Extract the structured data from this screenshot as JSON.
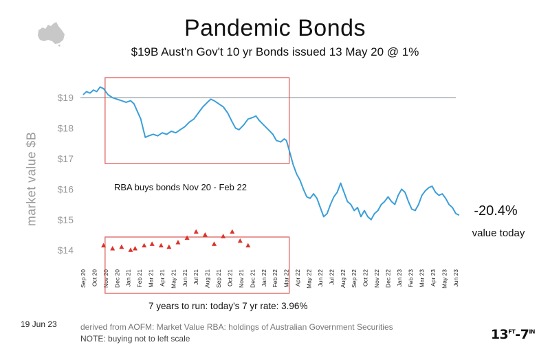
{
  "chart_data": {
    "type": "line",
    "title": "Pandemic Bonds",
    "subtitle": "$19B Aust'n Gov't 10 yr Bonds issued 13 May 20 @ 1%",
    "ylabel": "market value  $B",
    "yticks": [
      "$14",
      "$15",
      "$16",
      "$17",
      "$18",
      "$19"
    ],
    "ylim": [
      13.6,
      19.5
    ],
    "reference_value": 19,
    "x_ticks": [
      "Sep 20",
      "Oct 20",
      "Nov 20",
      "Dec 20",
      "Jan 21",
      "Feb 21",
      "Mar 21",
      "Apr 21",
      "May 21",
      "Jun 21",
      "Jul 21",
      "Aug 21",
      "Sep 21",
      "Oct 21",
      "Nov 21",
      "Dec 21",
      "Jan 22",
      "Feb 22",
      "Mar 22",
      "Apr 22",
      "May 22",
      "Jun 22",
      "Jul 22",
      "Aug 22",
      "Sep 22",
      "Oct 22",
      "Nov 22",
      "Dec 22",
      "Jan 23",
      "Feb 23",
      "Mar 23",
      "Apr 23",
      "May 23",
      "Jun 23"
    ],
    "series": [
      {
        "color": "#3a9fd8",
        "values": [
          [
            0,
            19.1
          ],
          [
            0.3,
            19.2
          ],
          [
            0.6,
            19.15
          ],
          [
            0.9,
            19.25
          ],
          [
            1.2,
            19.2
          ],
          [
            1.5,
            19.35
          ],
          [
            1.8,
            19.3
          ],
          [
            2.0,
            19.2
          ],
          [
            2.2,
            19.1
          ],
          [
            2.6,
            19.0
          ],
          [
            3.0,
            18.95
          ],
          [
            3.4,
            18.9
          ],
          [
            3.8,
            18.85
          ],
          [
            4.2,
            18.9
          ],
          [
            4.5,
            18.8
          ],
          [
            4.8,
            18.55
          ],
          [
            5.1,
            18.3
          ],
          [
            5.3,
            18.0
          ],
          [
            5.5,
            17.7
          ],
          [
            5.8,
            17.75
          ],
          [
            6.2,
            17.8
          ],
          [
            6.6,
            17.75
          ],
          [
            7.0,
            17.85
          ],
          [
            7.4,
            17.8
          ],
          [
            7.8,
            17.9
          ],
          [
            8.2,
            17.85
          ],
          [
            8.6,
            17.95
          ],
          [
            9.0,
            18.05
          ],
          [
            9.4,
            18.2
          ],
          [
            9.8,
            18.3
          ],
          [
            10.2,
            18.5
          ],
          [
            10.6,
            18.7
          ],
          [
            11.0,
            18.85
          ],
          [
            11.3,
            18.95
          ],
          [
            11.6,
            18.9
          ],
          [
            12.0,
            18.8
          ],
          [
            12.4,
            18.7
          ],
          [
            12.8,
            18.5
          ],
          [
            13.2,
            18.2
          ],
          [
            13.5,
            18.0
          ],
          [
            13.8,
            17.95
          ],
          [
            14.2,
            18.1
          ],
          [
            14.6,
            18.3
          ],
          [
            15.0,
            18.35
          ],
          [
            15.3,
            18.4
          ],
          [
            15.6,
            18.25
          ],
          [
            16.0,
            18.1
          ],
          [
            16.4,
            17.95
          ],
          [
            16.8,
            17.8
          ],
          [
            17.1,
            17.6
          ],
          [
            17.5,
            17.55
          ],
          [
            17.8,
            17.65
          ],
          [
            18.0,
            17.6
          ],
          [
            18.3,
            17.2
          ],
          [
            18.6,
            16.8
          ],
          [
            18.9,
            16.5
          ],
          [
            19.2,
            16.3
          ],
          [
            19.5,
            16.0
          ],
          [
            19.8,
            15.75
          ],
          [
            20.1,
            15.7
          ],
          [
            20.4,
            15.85
          ],
          [
            20.7,
            15.7
          ],
          [
            21.0,
            15.4
          ],
          [
            21.3,
            15.1
          ],
          [
            21.6,
            15.2
          ],
          [
            21.9,
            15.5
          ],
          [
            22.2,
            15.75
          ],
          [
            22.5,
            15.9
          ],
          [
            22.8,
            16.2
          ],
          [
            23.1,
            15.9
          ],
          [
            23.4,
            15.6
          ],
          [
            23.7,
            15.5
          ],
          [
            24.0,
            15.3
          ],
          [
            24.3,
            15.4
          ],
          [
            24.6,
            15.1
          ],
          [
            24.9,
            15.3
          ],
          [
            25.2,
            15.1
          ],
          [
            25.5,
            15.0
          ],
          [
            25.8,
            15.2
          ],
          [
            26.1,
            15.3
          ],
          [
            26.4,
            15.5
          ],
          [
            26.7,
            15.6
          ],
          [
            27.0,
            15.75
          ],
          [
            27.3,
            15.6
          ],
          [
            27.6,
            15.5
          ],
          [
            27.9,
            15.8
          ],
          [
            28.2,
            16.0
          ],
          [
            28.5,
            15.9
          ],
          [
            28.8,
            15.6
          ],
          [
            29.1,
            15.35
          ],
          [
            29.4,
            15.3
          ],
          [
            29.7,
            15.5
          ],
          [
            30.0,
            15.8
          ],
          [
            30.3,
            15.95
          ],
          [
            30.6,
            16.05
          ],
          [
            30.9,
            16.1
          ],
          [
            31.2,
            15.9
          ],
          [
            31.5,
            15.8
          ],
          [
            31.8,
            15.85
          ],
          [
            32.1,
            15.7
          ],
          [
            32.4,
            15.5
          ],
          [
            32.7,
            15.4
          ],
          [
            33.0,
            15.2
          ],
          [
            33.3,
            15.15
          ]
        ]
      }
    ],
    "rba_purchases": [
      [
        1.8,
        14.15
      ],
      [
        2.6,
        14.05
      ],
      [
        3.4,
        14.1
      ],
      [
        4.2,
        14.0
      ],
      [
        4.6,
        14.05
      ],
      [
        5.4,
        14.15
      ],
      [
        6.1,
        14.2
      ],
      [
        6.9,
        14.15
      ],
      [
        7.6,
        14.1
      ],
      [
        8.4,
        14.25
      ],
      [
        9.2,
        14.4
      ],
      [
        10.0,
        14.6
      ],
      [
        10.8,
        14.5
      ],
      [
        11.6,
        14.2
      ],
      [
        12.4,
        14.45
      ],
      [
        13.2,
        14.6
      ],
      [
        13.9,
        14.3
      ],
      [
        14.6,
        14.15
      ]
    ]
  },
  "labels": {
    "rba": "RBA buys bonds Nov 20 - Feb 22",
    "change": "-20.4%",
    "change_sub": "value today",
    "rate": "7 years to run:  today's 7 yr rate:   3.96%",
    "date": "19 Jun 23",
    "source": "derived from  AOFM: Market Value  RBA:  holdings of Australian Government Securities",
    "note": "NOTE:  buying not to left scale",
    "logo_main": "13",
    "logo_sup": "FT",
    "logo_end": "7",
    "logo_sup2": "IN"
  },
  "colors": {
    "line": "#3a9fd8",
    "box": "#d9534f",
    "marker": "#d9342b",
    "axis_text": "#9a9a9a",
    "ref_line": "#8a8f98"
  }
}
